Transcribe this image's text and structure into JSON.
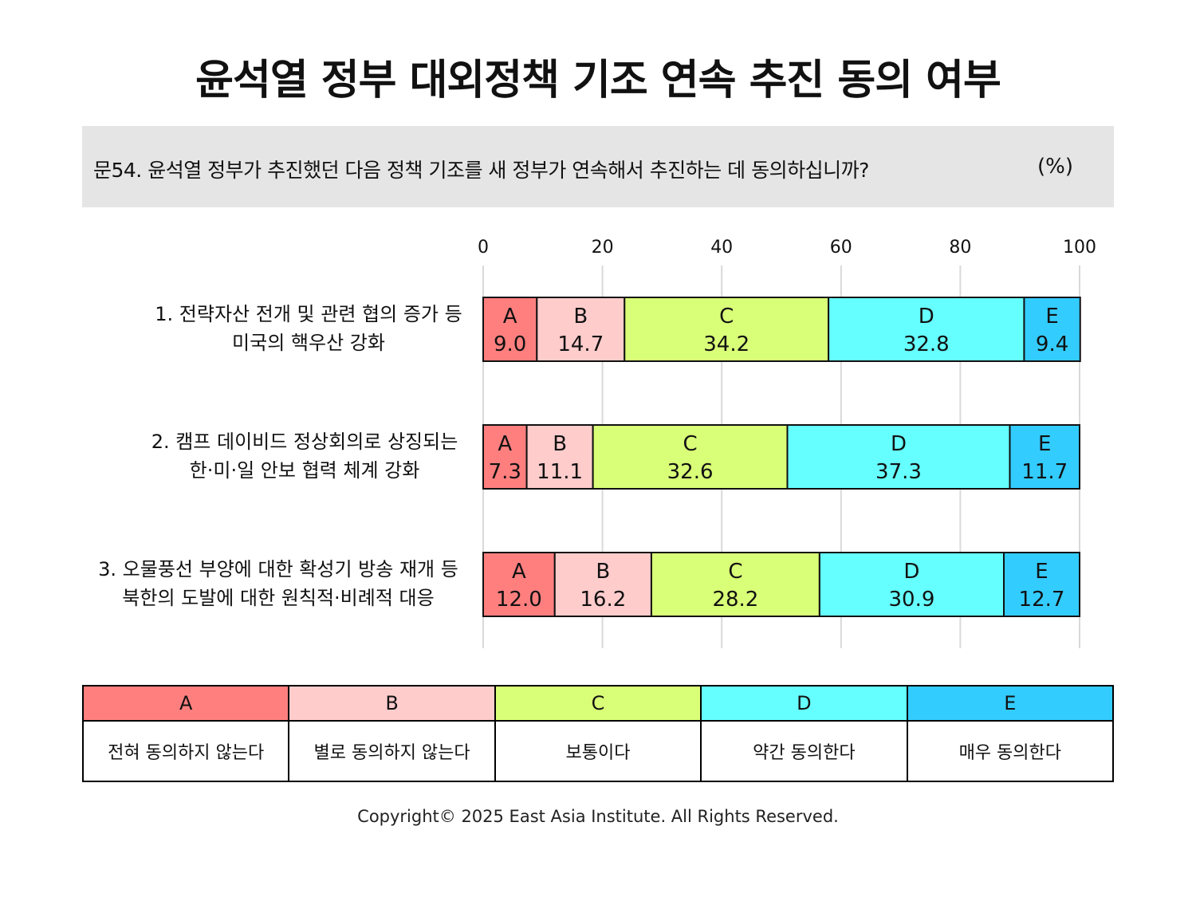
{
  "title": "윤석열 정부 대외정책 기조 연속 추진 동의 여부",
  "question": "문54. 윤석열 정부가 추진했던 다음 정책 기조를 새 정부가 연속해서 추진하는 데 동의하십니까?",
  "unit": "(%)",
  "chart_data": {
    "type": "bar",
    "orientation": "horizontal",
    "stacked": true,
    "xlim": [
      0,
      100
    ],
    "xticks": [
      "0",
      "20",
      "40",
      "60",
      "80",
      "100"
    ],
    "grid": true,
    "categories": [
      [
        "1. 전략자산 전개 및 관련 협의 증가 등",
        "미국의 핵우산 강화"
      ],
      [
        "2. 캠프 데이비드 정상회의로 상징되는",
        "한·미·일 안보 협력 체계 강화"
      ],
      [
        "3. 오물풍선 부양에 대한 확성기 방송 재개 등",
        "북한의 도발에 대한 원칙적·비례적 대응"
      ]
    ],
    "series": [
      {
        "name": "A",
        "color": "#ff7f7f",
        "values": [
          9.0,
          7.3,
          12.0
        ],
        "labels": [
          "9.0",
          "7.3",
          "12.0"
        ]
      },
      {
        "name": "B",
        "color": "#ffcccc",
        "values": [
          14.7,
          11.1,
          16.2
        ],
        "labels": [
          "14.7",
          "11.1",
          "16.2"
        ]
      },
      {
        "name": "C",
        "color": "#d9ff78",
        "values": [
          34.2,
          32.6,
          28.2
        ],
        "labels": [
          "34.2",
          "32.6",
          "28.2"
        ]
      },
      {
        "name": "D",
        "color": "#66ffff",
        "values": [
          32.8,
          37.3,
          30.9
        ],
        "labels": [
          "32.8",
          "37.3",
          "30.9"
        ]
      },
      {
        "name": "E",
        "color": "#33ccff",
        "values": [
          9.4,
          11.7,
          12.7
        ],
        "labels": [
          "9.4",
          "11.7",
          "12.7"
        ]
      }
    ]
  },
  "legend": {
    "keys": [
      "A",
      "B",
      "C",
      "D",
      "E"
    ],
    "colors": [
      "#ff7f7f",
      "#ffcccc",
      "#d9ff78",
      "#66ffff",
      "#33ccff"
    ],
    "descriptions": [
      "전혀 동의하지 않는다",
      "별로 동의하지 않는다",
      "보통이다",
      "약간 동의한다",
      "매우 동의한다"
    ]
  },
  "footer": "Copyright© 2025 East Asia Institute. All Rights Reserved."
}
